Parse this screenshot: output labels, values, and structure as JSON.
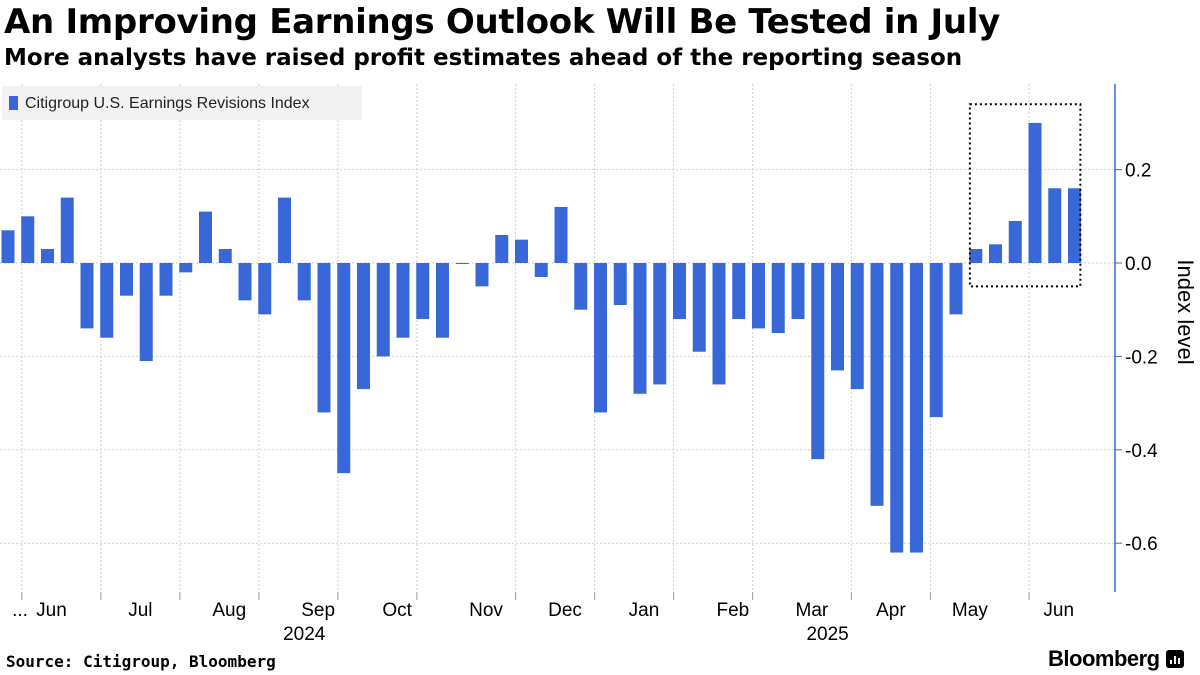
{
  "title": "An Improving Earnings Outlook Will Be Tested in July",
  "subtitle": "More analysts have raised profit estimates ahead of the reporting season",
  "source": "Source: Citigroup, Bloomberg",
  "brand": "Bloomberg",
  "chart_data": {
    "type": "bar",
    "title": "An Improving Earnings Outlook Will Be Tested in July",
    "ylabel": "Index level",
    "xlabel": "",
    "ylim": [
      -0.7,
      0.38
    ],
    "yticks": [
      0.2,
      0.0,
      -0.2,
      -0.4,
      -0.6
    ],
    "ytick_labels": [
      "0.2",
      "0.0",
      "-0.2",
      "-0.4",
      "-0.6"
    ],
    "grid": true,
    "y_axis_side": "right",
    "legend_placement": "top-left",
    "bar_color": "#3868d8",
    "series": [
      {
        "name": "Citigroup U.S. Earnings Revisions Index",
        "values": [
          0.07,
          0.1,
          0.03,
          0.14,
          -0.14,
          -0.16,
          -0.07,
          -0.21,
          -0.07,
          -0.02,
          0.11,
          0.03,
          -0.08,
          -0.11,
          0.14,
          -0.08,
          -0.32,
          -0.45,
          -0.27,
          -0.2,
          -0.16,
          -0.12,
          -0.16,
          0.0,
          -0.05,
          0.06,
          0.05,
          -0.03,
          0.12,
          -0.1,
          -0.32,
          -0.09,
          -0.28,
          -0.26,
          -0.12,
          -0.19,
          -0.26,
          -0.12,
          -0.14,
          -0.15,
          -0.12,
          -0.42,
          -0.23,
          -0.27,
          -0.52,
          -0.62,
          -0.62,
          -0.33,
          -0.11,
          0.03,
          0.04,
          0.09,
          0.3,
          0.16,
          0.16
        ]
      }
    ],
    "month_labels": [
      {
        "label": "...",
        "bar": 0
      },
      {
        "label": "Jun",
        "bar": 2
      },
      {
        "label": "Jul",
        "bar": 6.5
      },
      {
        "label": "Aug",
        "bar": 11
      },
      {
        "label": "Sep",
        "bar": 15.5
      },
      {
        "label": "Oct",
        "bar": 19.5
      },
      {
        "label": "Nov",
        "bar": 24
      },
      {
        "label": "Dec",
        "bar": 28
      },
      {
        "label": "Jan",
        "bar": 32
      },
      {
        "label": "Feb",
        "bar": 36.5
      },
      {
        "label": "Mar",
        "bar": 40.5
      },
      {
        "label": "Apr",
        "bar": 44.5
      },
      {
        "label": "May",
        "bar": 48.5
      },
      {
        "label": "Jun",
        "bar": 53
      }
    ],
    "month_boundaries": [
      0.5,
      4.5,
      8.5,
      12.5,
      16.5,
      20.5,
      25.5,
      29.5,
      33.5,
      37.5,
      42.5,
      46.5,
      51.5
    ],
    "year_labels": [
      {
        "label": "2024",
        "bar": 15
      },
      {
        "label": "2025",
        "bar": 41.5
      }
    ],
    "highlight": {
      "from_bar": 48.5,
      "to_bar": 54.5,
      "y_from": -0.05,
      "y_to": 0.34
    }
  }
}
